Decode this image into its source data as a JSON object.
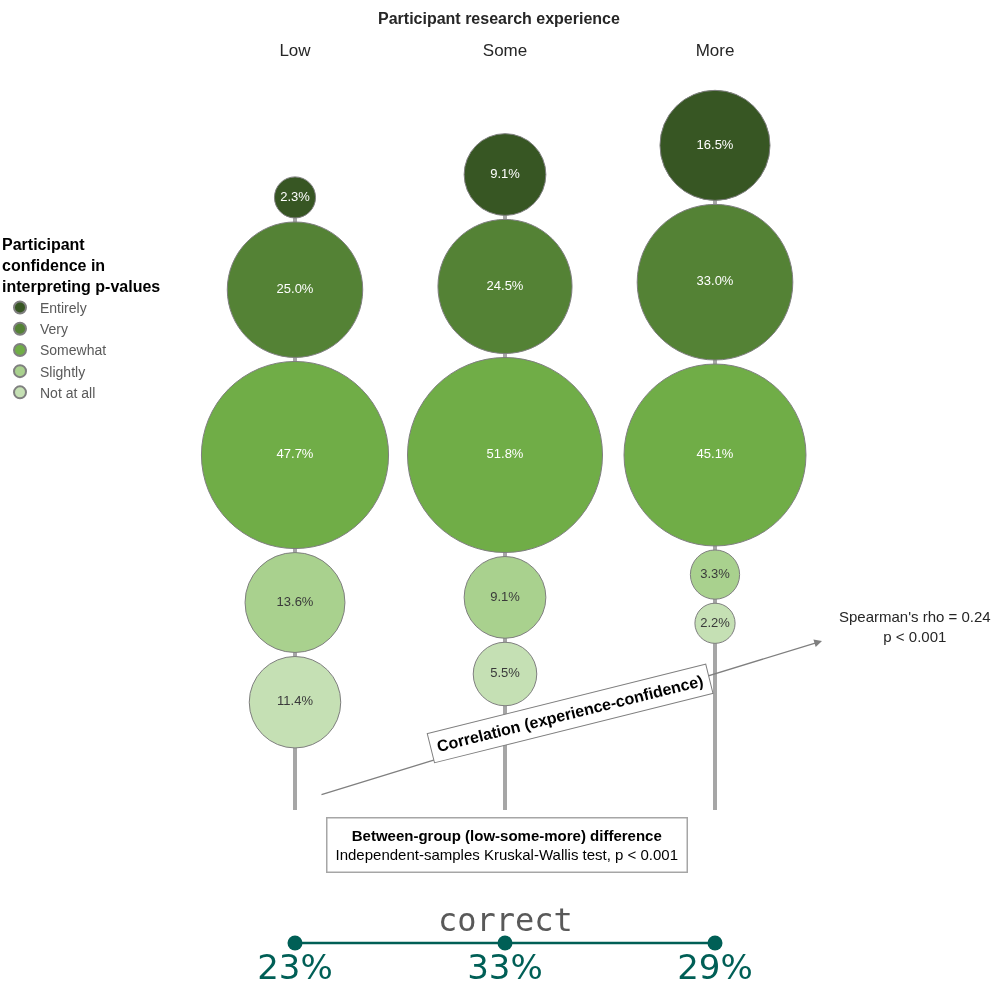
{
  "chart_data": [
    {
      "type": "other",
      "title": "Participant research experience",
      "categories": [
        "Low",
        "Some",
        "More"
      ],
      "legend_title": "Participant confidence in interpreting p-values",
      "legend": "left",
      "series": [
        {
          "name": "Entirely",
          "color": "#375623",
          "values": [
            2.3,
            9.1,
            16.5
          ],
          "value_labels": [
            "2.3%",
            "9.1%",
            "16.5%"
          ]
        },
        {
          "name": "Very",
          "color": "#548235",
          "values": [
            25.0,
            24.5,
            33.0
          ],
          "value_labels": [
            "25.0%",
            "24.5%",
            "33.0%"
          ]
        },
        {
          "name": "Somewhat",
          "color": "#70ad47",
          "values": [
            47.7,
            51.8,
            45.1
          ],
          "value_labels": [
            "47.7%",
            "51.8%",
            "45.1%"
          ]
        },
        {
          "name": "Slightly",
          "color": "#a9d18e",
          "values": [
            13.6,
            9.1,
            3.3
          ],
          "value_labels": [
            "13.6%",
            "9.1%",
            "3.3%"
          ]
        },
        {
          "name": "Not at all",
          "color": "#c5e0b4",
          "values": [
            11.4,
            5.5,
            2.2
          ],
          "value_labels": [
            "11.4%",
            "5.5%",
            "2.2%"
          ]
        }
      ],
      "annotations": [
        "Correlation (experience-confidence)",
        "Spearman's rho = 0.24",
        "p < 0.001",
        "Between-group (low-some-more) difference",
        "Independent-samples Kruskal-Wallis test, p < 0.001"
      ]
    },
    {
      "type": "other",
      "title": "correct",
      "categories": [
        null,
        null,
        null
      ],
      "series": [
        {
          "color": "#005f56",
          "values": [
            23,
            33,
            29
          ],
          "value_labels": [
            "23%",
            "33%",
            "29%"
          ]
        }
      ]
    }
  ]
}
